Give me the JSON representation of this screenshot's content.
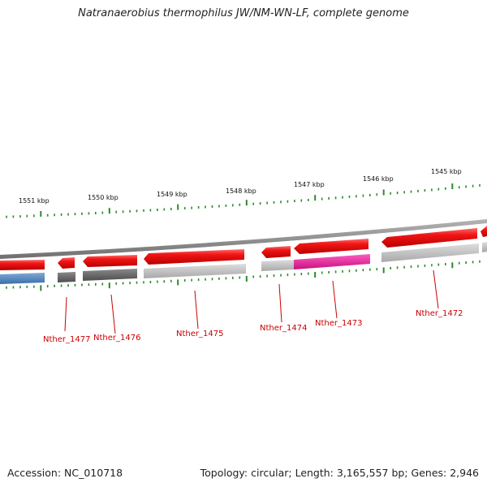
{
  "title": "Natranaerobius thermophilus JW/NM-WN-LF, complete genome",
  "footer": {
    "accession": "Accession: NC_010718",
    "summary": "Topology: circular; Length: 3,165,557 bp; Genes: 2,946"
  },
  "scale": {
    "labels": [
      "1551 kbp",
      "1550 kbp",
      "1549 kbp",
      "1548 kbp",
      "1547 kbp",
      "1546 kbp",
      "1545 kbp"
    ]
  },
  "genes": [
    {
      "label": "Nther_1477",
      "color": "#cc0000"
    },
    {
      "label": "Nther_1476",
      "color": "#cc0000"
    },
    {
      "label": "Nther_1475",
      "color": "#cc0000"
    },
    {
      "label": "Nther_1474",
      "color": "#cc0000"
    },
    {
      "label": "Nther_1473",
      "color": "#cc0000"
    },
    {
      "label": "Nther_1472",
      "color": "#cc0000"
    }
  ],
  "colors": {
    "forward_feature": "#e81010",
    "backbone": "#8a8a8a",
    "ticks": "#2a8a2a",
    "cog_blue": "#4a7fb5",
    "cog_dark_gray": "#6a6a6a",
    "cog_light_gray": "#b8b8b8",
    "cog_magenta": "#e0209a"
  }
}
